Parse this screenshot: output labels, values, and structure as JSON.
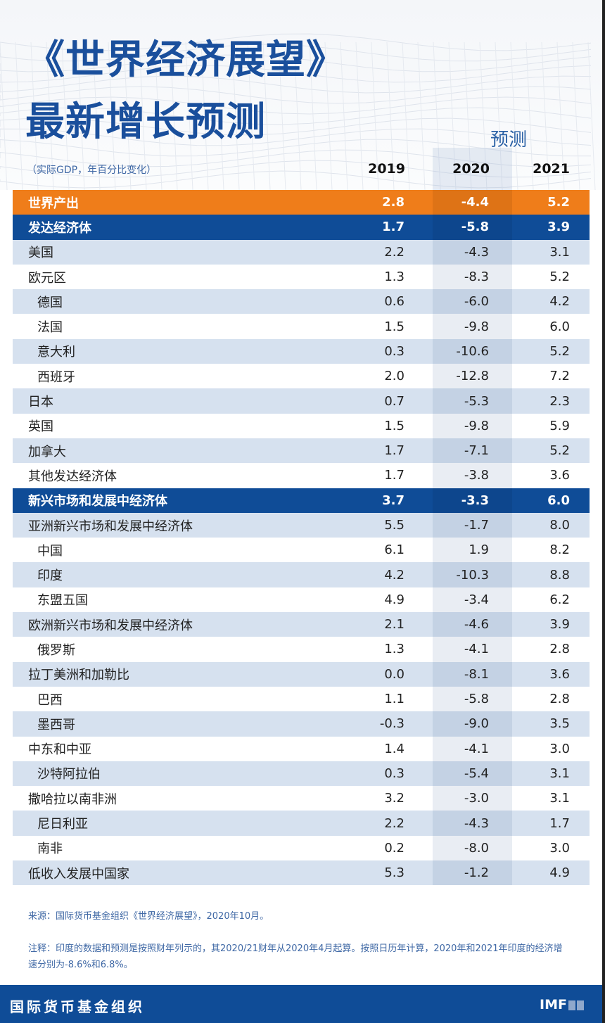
{
  "title_line1": "《世界经济展望》",
  "title_line2": "最新增长预测",
  "forecast_label": "预测",
  "unit_label": "（实际GDP，年百分比变化）",
  "years": [
    "2019",
    "2020",
    "2021"
  ],
  "rows": [
    {
      "label": "世界产出",
      "v": [
        "2.8",
        "-4.4",
        "5.2"
      ],
      "style": "orange",
      "indent": false
    },
    {
      "label": "发达经济体",
      "v": [
        "1.7",
        "-5.8",
        "3.9"
      ],
      "style": "blue",
      "indent": false
    },
    {
      "label": "美国",
      "v": [
        "2.2",
        "-4.3",
        "3.1"
      ],
      "style": "light",
      "indent": false
    },
    {
      "label": "欧元区",
      "v": [
        "1.3",
        "-8.3",
        "5.2"
      ],
      "style": "white",
      "indent": false
    },
    {
      "label": "德国",
      "v": [
        "0.6",
        "-6.0",
        "4.2"
      ],
      "style": "light",
      "indent": true
    },
    {
      "label": "法国",
      "v": [
        "1.5",
        "-9.8",
        "6.0"
      ],
      "style": "white",
      "indent": true
    },
    {
      "label": "意大利",
      "v": [
        "0.3",
        "-10.6",
        "5.2"
      ],
      "style": "light",
      "indent": true
    },
    {
      "label": "西班牙",
      "v": [
        "2.0",
        "-12.8",
        "7.2"
      ],
      "style": "white",
      "indent": true
    },
    {
      "label": "日本",
      "v": [
        "0.7",
        "-5.3",
        "2.3"
      ],
      "style": "light",
      "indent": false
    },
    {
      "label": "英国",
      "v": [
        "1.5",
        "-9.8",
        "5.9"
      ],
      "style": "white",
      "indent": false
    },
    {
      "label": "加拿大",
      "v": [
        "1.7",
        "-7.1",
        "5.2"
      ],
      "style": "light",
      "indent": false
    },
    {
      "label": "其他发达经济体",
      "v": [
        "1.7",
        "-3.8",
        "3.6"
      ],
      "style": "white",
      "indent": false
    },
    {
      "label": "新兴市场和发展中经济体",
      "v": [
        "3.7",
        "-3.3",
        "6.0"
      ],
      "style": "blue",
      "indent": false
    },
    {
      "label": "亚洲新兴市场和发展中经济体",
      "v": [
        "5.5",
        "-1.7",
        "8.0"
      ],
      "style": "light",
      "indent": false
    },
    {
      "label": "中国",
      "v": [
        "6.1",
        "1.9",
        "8.2"
      ],
      "style": "white",
      "indent": true
    },
    {
      "label": "印度",
      "v": [
        "4.2",
        "-10.3",
        "8.8"
      ],
      "style": "light",
      "indent": true
    },
    {
      "label": "东盟五国",
      "v": [
        "4.9",
        "-3.4",
        "6.2"
      ],
      "style": "white",
      "indent": true
    },
    {
      "label": "欧洲新兴市场和发展中经济体",
      "v": [
        "2.1",
        "-4.6",
        "3.9"
      ],
      "style": "light",
      "indent": false
    },
    {
      "label": "俄罗斯",
      "v": [
        "1.3",
        "-4.1",
        "2.8"
      ],
      "style": "white",
      "indent": true
    },
    {
      "label": "拉丁美洲和加勒比",
      "v": [
        "0.0",
        "-8.1",
        "3.6"
      ],
      "style": "light",
      "indent": false
    },
    {
      "label": "巴西",
      "v": [
        "1.1",
        "-5.8",
        "2.8"
      ],
      "style": "white",
      "indent": true
    },
    {
      "label": "墨西哥",
      "v": [
        "-0.3",
        "-9.0",
        "3.5"
      ],
      "style": "light",
      "indent": true
    },
    {
      "label": "中东和中亚",
      "v": [
        "1.4",
        "-4.1",
        "3.0"
      ],
      "style": "white",
      "indent": false
    },
    {
      "label": "沙特阿拉伯",
      "v": [
        "0.3",
        "-5.4",
        "3.1"
      ],
      "style": "light",
      "indent": true
    },
    {
      "label": "撒哈拉以南非洲",
      "v": [
        "3.2",
        "-3.0",
        "3.1"
      ],
      "style": "white",
      "indent": false
    },
    {
      "label": "尼日利亚",
      "v": [
        "2.2",
        "-4.3",
        "1.7"
      ],
      "style": "light",
      "indent": true
    },
    {
      "label": "南非",
      "v": [
        "0.2",
        "-8.0",
        "3.0"
      ],
      "style": "white",
      "indent": true
    },
    {
      "label": "低收入发展中国家",
      "v": [
        "5.3",
        "-1.2",
        "4.9"
      ],
      "style": "light",
      "indent": false
    }
  ],
  "source": "来源：国际货币基金组织《世界经济展望》，2020年10月。",
  "note": "注释：印度的数据和预测是按照财年列示的，其2020/21财年从2020年4月起算。按照日历年计算，2020年和2021年印度的经济增速分别为-8.6%和6.8%。",
  "footer_org": "国际货币基金组织",
  "footer_logo": "IMF",
  "colors": {
    "orange": "#ef7d1a",
    "blue": "#0f4c97",
    "light": "#d6e1ef",
    "title": "#1a4f9c"
  }
}
